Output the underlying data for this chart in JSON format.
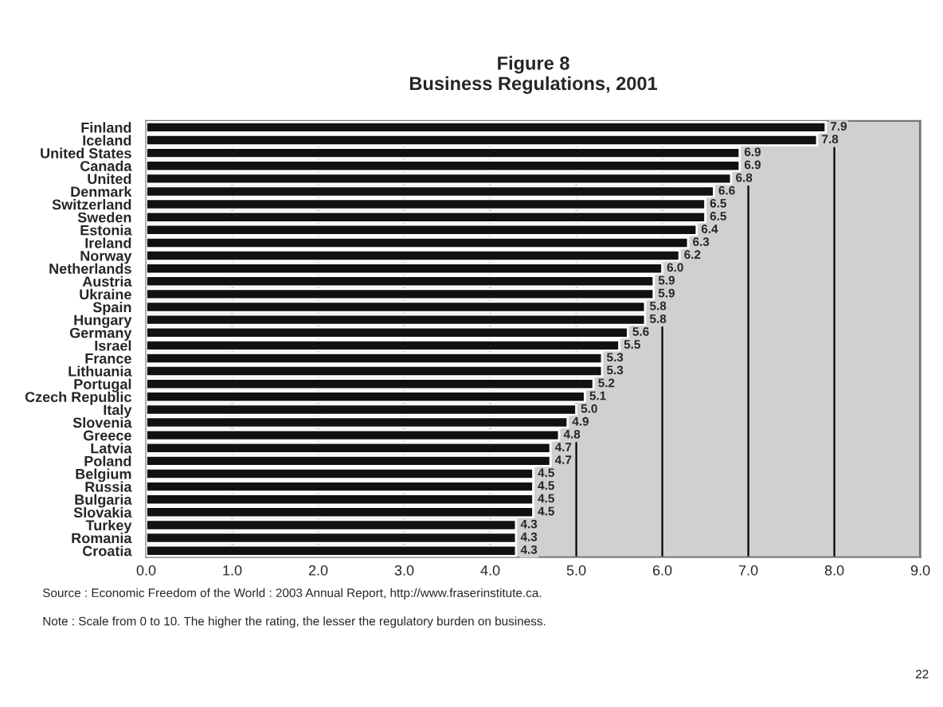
{
  "chart_data": {
    "type": "bar",
    "orientation": "horizontal",
    "title": "Figure 8\nBusiness Regulations, 2001",
    "categories": [
      "Finland",
      "Iceland",
      "United States",
      "Canada",
      "United",
      "Denmark",
      "Switzerland",
      "Sweden",
      "Estonia",
      "Ireland",
      "Norway",
      "Netherlands",
      "Austria",
      "Ukraine",
      "Spain",
      "Hungary",
      "Germany",
      "Israel",
      "France",
      "Lithuania",
      "Portugal",
      "Czech Republic",
      "Italy",
      "Slovenia",
      "Greece",
      "Latvia",
      "Poland",
      "Belgium",
      "Russia",
      "Bulgaria",
      "Slovakia",
      "Turkey",
      "Romania",
      "Croatia"
    ],
    "values": [
      7.9,
      7.8,
      6.9,
      6.9,
      6.8,
      6.6,
      6.5,
      6.5,
      6.4,
      6.3,
      6.2,
      6.0,
      5.9,
      5.9,
      5.8,
      5.8,
      5.6,
      5.5,
      5.3,
      5.3,
      5.2,
      5.1,
      5.0,
      4.9,
      4.8,
      4.7,
      4.7,
      4.5,
      4.5,
      4.5,
      4.5,
      4.3,
      4.3,
      4.3
    ],
    "value_labels": [
      "7.9",
      "7.8",
      "6.9",
      "6.9",
      "6.8",
      "6.6",
      "6.5",
      "6.5",
      "6.4",
      "6.3",
      "6.2",
      "6.0",
      "5.9",
      "5.9",
      "5.8",
      "5.8",
      "5.6",
      "5.5",
      "5.3",
      "5.3",
      "5.2",
      "5.1",
      "5.0",
      "4.9",
      "4.8",
      "4.7",
      "4.7",
      "4.5",
      "4.5",
      "4.5",
      "4.5",
      "4.3",
      "4.3",
      "4.3"
    ],
    "color": "#111111",
    "xlim": [
      0,
      9
    ],
    "xticks": [
      {
        "value": 0,
        "label": "0.0"
      },
      {
        "value": 1,
        "label": "1.0"
      },
      {
        "value": 2,
        "label": "2.0"
      },
      {
        "value": 3,
        "label": "3.0"
      },
      {
        "value": 4,
        "label": "4.0"
      },
      {
        "value": 5,
        "label": "5.0"
      },
      {
        "value": 6,
        "label": "6.0"
      },
      {
        "value": 7,
        "label": "7.0"
      },
      {
        "value": 8,
        "label": "8.0"
      },
      {
        "value": 9,
        "label": "9.0"
      }
    ],
    "grid": "x",
    "legend": false,
    "annotations": [
      "Source : Economic Freedom of the World : 2003 Annual Report, http://www.fraserinstitute.ca.",
      "Note : Scale from 0 to 10. The higher the rating, the lesser the regulatory burden on business.",
      "22"
    ]
  }
}
